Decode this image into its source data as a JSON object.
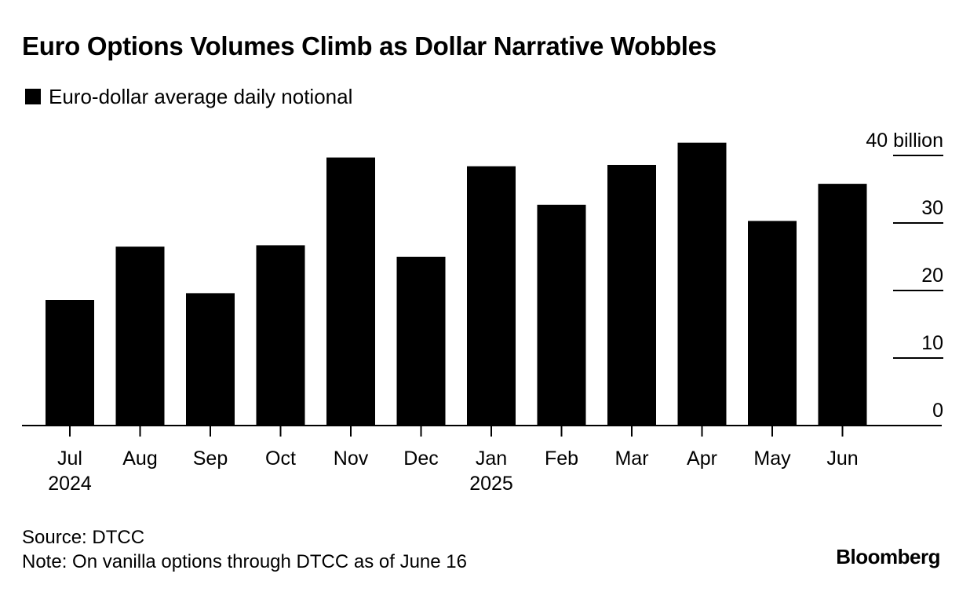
{
  "header": {
    "title": "Euro Options Volumes Climb as Dollar Narrative Wobbles"
  },
  "chart_data": {
    "type": "bar",
    "categories": [
      "Jul",
      "Aug",
      "Sep",
      "Oct",
      "Nov",
      "Dec",
      "Jan",
      "Feb",
      "Mar",
      "Apr",
      "May",
      "Jun"
    ],
    "category_sublabels": [
      "2024",
      "",
      "",
      "",
      "",
      "",
      "2025",
      "",
      "",
      "",
      "",
      ""
    ],
    "series": [
      {
        "name": "Euro-dollar average daily notional",
        "color": "#000000",
        "values": [
          18.6,
          26.5,
          19.6,
          26.7,
          39.7,
          25.0,
          38.4,
          32.7,
          38.6,
          41.9,
          30.3,
          35.8
        ]
      }
    ],
    "y_ticks": [
      0,
      10,
      20,
      30,
      40
    ],
    "y_tick_labels": [
      "0",
      "10",
      "20",
      "30",
      "40 billion"
    ],
    "ylim": [
      0,
      40
    ],
    "y_axis_side": "right",
    "grid": false,
    "legend_position": "top-left"
  },
  "footer": {
    "source": "Source: DTCC",
    "note": "Note: On vanilla options through DTCC as of June 16",
    "brand": "Bloomberg"
  }
}
